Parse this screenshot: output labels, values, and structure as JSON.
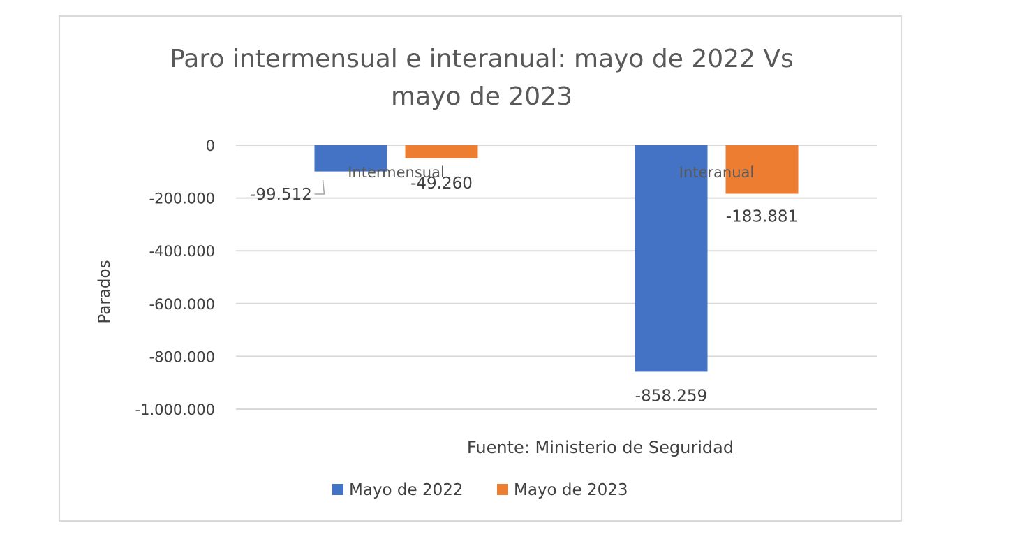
{
  "chart_data": {
    "type": "bar",
    "title_lines": [
      "Paro intermensual e interanual: mayo de 2022 Vs",
      "mayo de 2023"
    ],
    "categories": [
      "Intermensual",
      "Interanual"
    ],
    "series": [
      {
        "name": "Mayo de 2022",
        "color": "#4472c4",
        "values": [
          -99512,
          -858259
        ],
        "labels": [
          "-99.512",
          "-858.259"
        ]
      },
      {
        "name": "Mayo de 2023",
        "color": "#ed7d31",
        "values": [
          -49260,
          -183881
        ],
        "labels": [
          "-49.260",
          "-183.881"
        ]
      }
    ],
    "ylabel": "Parados",
    "xlabel": "",
    "ylim": [
      -1000000,
      0
    ],
    "yticks": [
      0,
      -200000,
      -400000,
      -600000,
      -800000,
      -1000000
    ],
    "ytick_labels": [
      "0",
      "-200.000",
      "-400.000",
      "-600.000",
      "-800.000",
      "-1.000.000"
    ],
    "annotation": "Fuente: Ministerio de Seguridad",
    "grid": true,
    "legend_position": "bottom"
  }
}
